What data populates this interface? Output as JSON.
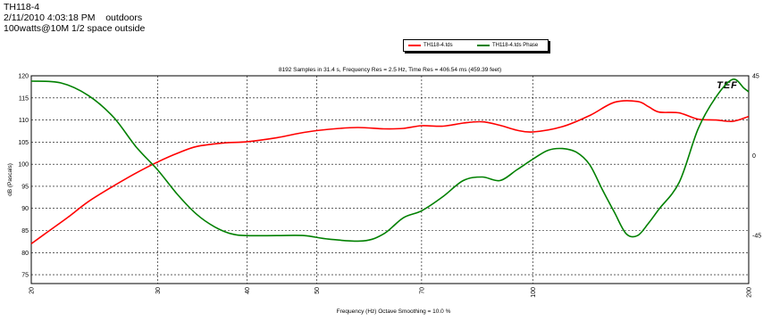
{
  "header": {
    "line1": "TH118-4",
    "line2": "2/11/2010 4:03:18 PM    outdoors",
    "line3": "100watts@10M 1/2 space outside"
  },
  "chart_data": {
    "type": "line",
    "title": "8192 Samples in 31.4 s, Frequency Res = 2.5 Hz, Time Res = 406.54 ms (459.39 feet)",
    "xlabel": "Frequency (Hz) Octave Smoothing = 10.0 %",
    "ylabel": "dB (Pascals)",
    "x_scale": "log",
    "xlim": [
      20,
      200
    ],
    "ylim": [
      73,
      120
    ],
    "y2lim": [
      -72,
      45
    ],
    "x_ticks": [
      20,
      30,
      40,
      50,
      70,
      100,
      200
    ],
    "x_tick_labels": [
      "20",
      "30",
      "40",
      "50",
      "70",
      "100",
      "200"
    ],
    "y_ticks": [
      75,
      80,
      85,
      90,
      95,
      100,
      105,
      110,
      115,
      120
    ],
    "y2_ticks": [
      45,
      0,
      -45
    ],
    "y2_tick_labels": [
      "45",
      "0",
      "-45"
    ],
    "grid": true,
    "legend_position": "top-center",
    "logo_text": "TEF",
    "series": [
      {
        "name": "TH118-4.tds",
        "color": "#ff0000",
        "axis": "left",
        "x": [
          20,
          21,
          22.5,
          24,
          26,
          28,
          30,
          32,
          34,
          37,
          40,
          44,
          48,
          52,
          57,
          62,
          66,
          70,
          75,
          80,
          85,
          90,
          95,
          100,
          110,
          120,
          130,
          140,
          145,
          150,
          160,
          170,
          180,
          190,
          200
        ],
        "values": [
          82,
          84.5,
          88,
          91.5,
          95,
          98,
          100.5,
          102.5,
          104,
          104.8,
          105.1,
          106,
          107.2,
          107.9,
          108.3,
          108,
          108.1,
          108.7,
          108.6,
          109.3,
          109.6,
          108.8,
          107.7,
          107.3,
          108.5,
          111,
          114,
          114.2,
          113,
          111.8,
          111.6,
          110.2,
          110,
          109.7,
          110.8
        ]
      },
      {
        "name": "TH118-4.tds Phase",
        "color": "#008000",
        "axis": "right",
        "x": [
          20,
          22,
          24,
          26,
          28,
          30,
          32,
          34,
          36,
          38,
          40,
          44,
          48,
          52,
          58,
          62,
          66,
          70,
          75,
          80,
          85,
          90,
          95,
          100,
          105,
          110,
          115,
          120,
          125,
          130,
          135,
          140,
          145,
          150,
          160,
          170,
          180,
          190,
          197,
          200
        ],
        "values": [
          42,
          41,
          34,
          22,
          5,
          -8,
          -22,
          -33,
          -40,
          -44,
          -45,
          -45,
          -45,
          -47,
          -48,
          -44,
          -35,
          -31,
          -23,
          -14,
          -12,
          -14,
          -8,
          -2,
          3,
          4,
          2,
          -5,
          -19,
          -32,
          -44,
          -45,
          -38,
          -30,
          -15,
          15,
          33,
          43,
          38,
          36
        ]
      }
    ]
  }
}
